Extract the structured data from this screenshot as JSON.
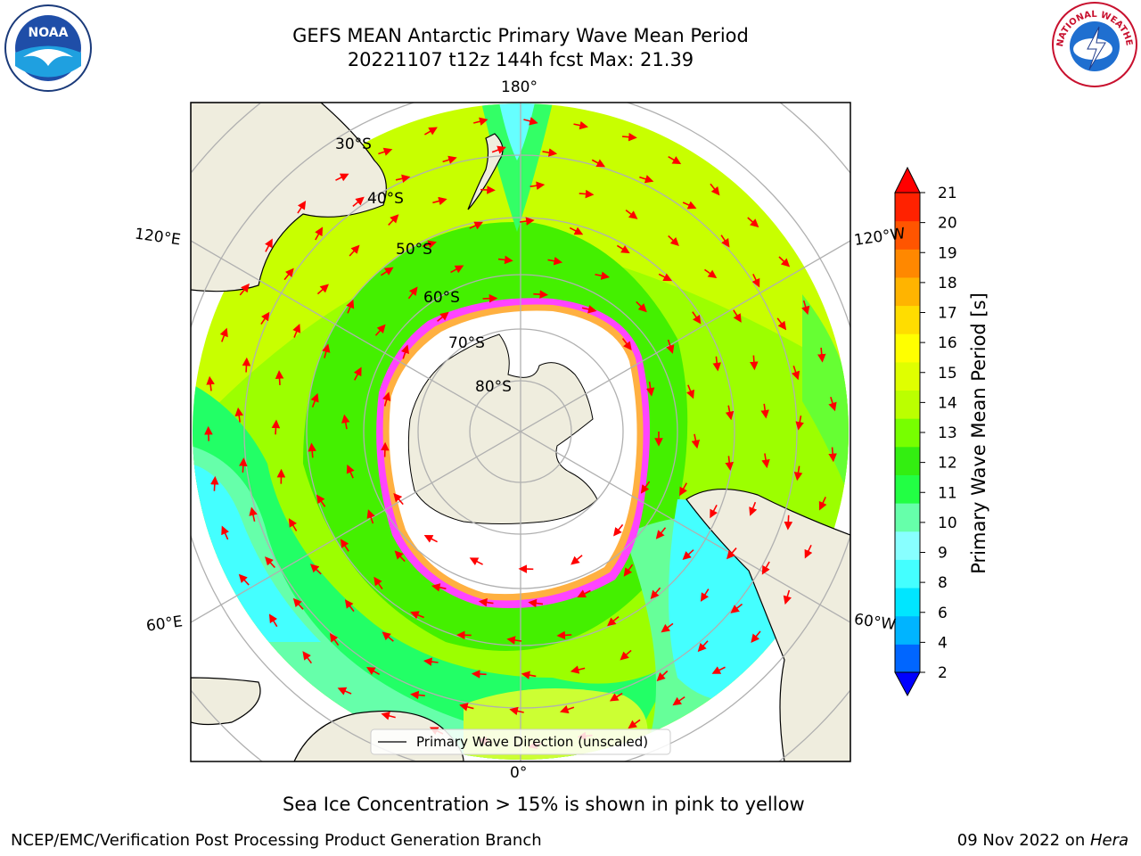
{
  "header": {
    "title_line1": "GEFS MEAN Antarctic Primary Wave Mean Period",
    "title_line2": "20221107 t12z 144h fcst   Max: 21.39"
  },
  "map": {
    "projection": "south-polar-stereographic",
    "meridian_labels": {
      "top": "180°",
      "bottom": "0°",
      "upper_left": "120°E",
      "upper_right": "120°W",
      "lower_left": "60°E",
      "lower_right": "60°W"
    },
    "latitude_labels": [
      "30°S",
      "40°S",
      "50°S",
      "60°S",
      "70°S",
      "80°S"
    ],
    "legend_label": "Primary Wave Direction (unscaled)",
    "land_color": "#efedde",
    "arrow_color": "#ff0000",
    "sea_ice_color": "#ff44ff"
  },
  "colorbar": {
    "label": "Primary Wave Mean Period [s]",
    "ticks": [
      "2",
      "4",
      "6",
      "8",
      "9",
      "10",
      "11",
      "12",
      "13",
      "14",
      "15",
      "16",
      "17",
      "18",
      "19",
      "20",
      "21"
    ],
    "colors": [
      "#0066ff",
      "#00b4ff",
      "#00e6ff",
      "#44ffff",
      "#88ffff",
      "#66ffaa",
      "#22ff44",
      "#33ee11",
      "#77ff00",
      "#bbff00",
      "#dfff00",
      "#ffff00",
      "#ffdd00",
      "#ffb400",
      "#ff8800",
      "#ff5500",
      "#ff2200"
    ],
    "under_color": "#0000ff",
    "over_color": "#ff0000"
  },
  "caption": "Sea Ice Concentration > 15% is shown in pink to yellow",
  "footer": {
    "left": "NCEP/EMC/Verification Post Processing Product Generation Branch",
    "right_date": "09 Nov 2022 on ",
    "right_host": "Hera"
  },
  "logos": {
    "noaa_text": "NOAA",
    "nws_text": "NATIONAL WEATHER SERVICE"
  }
}
